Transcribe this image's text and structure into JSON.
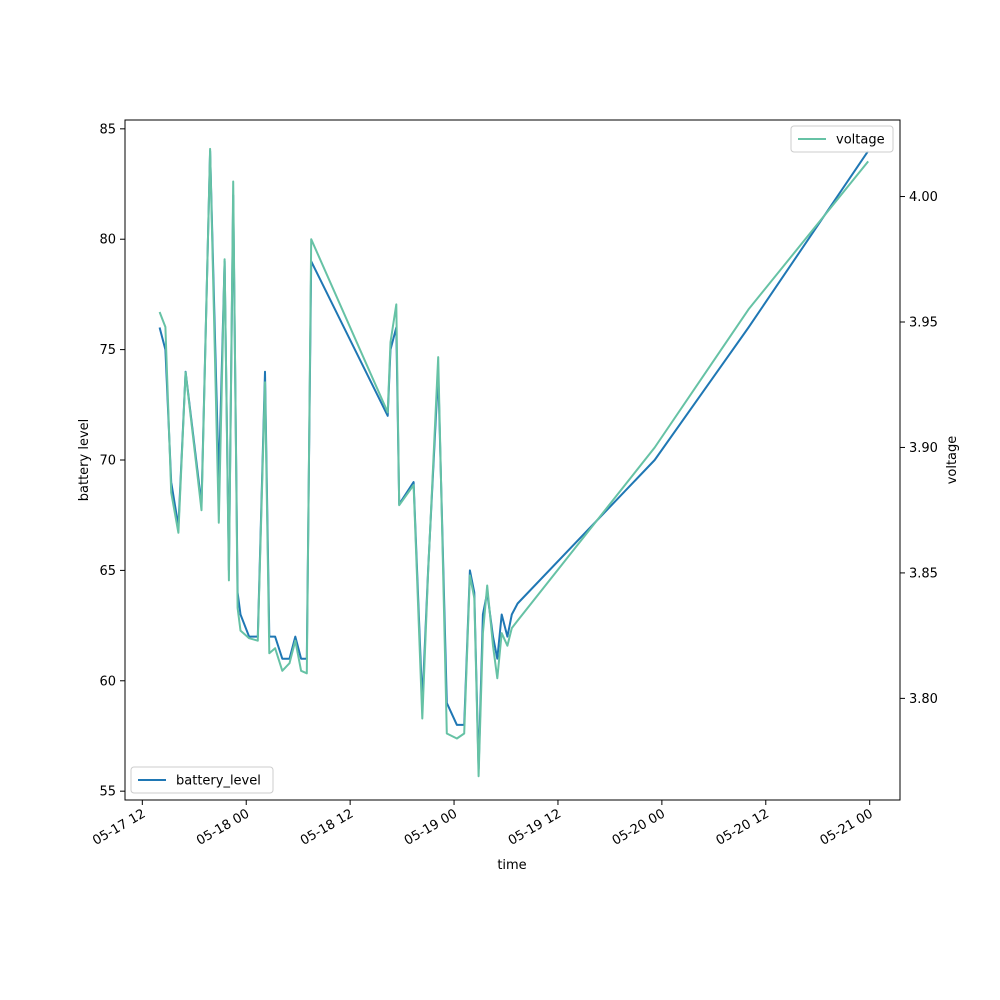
{
  "chart_data": {
    "type": "line",
    "xlabel": "time",
    "ylabel_left": "battery level",
    "ylabel_right": "voltage",
    "x_ticks": [
      "05-17 12",
      "05-18 00",
      "05-18 12",
      "05-19 00",
      "05-19 12",
      "05-20 00",
      "05-20 12",
      "05-21 00"
    ],
    "x_range": [
      "2024-05-17 10:00",
      "2024-05-21 03:30"
    ],
    "y_left": {
      "range": [
        54.6,
        85.4
      ],
      "ticks": [
        55,
        60,
        65,
        70,
        75,
        80,
        85
      ]
    },
    "y_right": {
      "range": [
        3.7595,
        4.0305
      ],
      "ticks": [
        3.8,
        3.85,
        3.9,
        3.95,
        4.0
      ],
      "tick_labels": [
        "3.80",
        "3.85",
        "3.90",
        "3.95",
        "4.00"
      ]
    },
    "series": [
      {
        "name": "battery_level",
        "axis": "left",
        "color": "#1f77b4",
        "legend_position": "lower-left",
        "x": [
          "2024-05-17 14:00",
          "2024-05-17 14:40",
          "2024-05-17 15:20",
          "2024-05-17 16:10",
          "2024-05-17 17:00",
          "2024-05-17 18:50",
          "2024-05-17 19:50",
          "2024-05-17 20:50",
          "2024-05-17 21:30",
          "2024-05-17 22:00",
          "2024-05-17 22:30",
          "2024-05-17 23:00",
          "2024-05-17 23:20",
          "2024-05-18 00:20",
          "2024-05-18 01:20",
          "2024-05-18 02:10",
          "2024-05-18 02:40",
          "2024-05-18 03:20",
          "2024-05-18 04:10",
          "2024-05-18 05:00",
          "2024-05-18 05:40",
          "2024-05-18 06:20",
          "2024-05-18 07:00",
          "2024-05-18 07:30",
          "2024-05-18 16:20",
          "2024-05-18 16:40",
          "2024-05-18 17:20",
          "2024-05-18 17:40",
          "2024-05-18 19:20",
          "2024-05-18 20:20",
          "2024-05-18 21:00",
          "2024-05-18 22:10",
          "2024-05-18 23:10",
          "2024-05-19 00:20",
          "2024-05-19 01:10",
          "2024-05-19 01:50",
          "2024-05-19 02:20",
          "2024-05-19 02:50",
          "2024-05-19 03:20",
          "2024-05-19 03:50",
          "2024-05-19 04:30",
          "2024-05-19 05:00",
          "2024-05-19 05:30",
          "2024-05-19 06:10",
          "2024-05-19 06:40",
          "2024-05-19 07:20",
          "2024-05-19 23:10",
          "2024-05-20 10:00",
          "2024-05-20 23:50"
        ],
        "values": [
          76.0,
          75.0,
          69.0,
          67.0,
          74.0,
          68.0,
          84.0,
          69.0,
          79.0,
          65.0,
          82.0,
          64.0,
          63.0,
          62.0,
          62.0,
          74.0,
          62.0,
          62.0,
          61.0,
          61.0,
          62.0,
          61.0,
          61.0,
          79.0,
          72.0,
          75.0,
          76.0,
          68.0,
          69.0,
          59.0,
          65.0,
          74.0,
          59.0,
          58.0,
          58.0,
          65.0,
          64.0,
          56.0,
          63.0,
          64.0,
          62.0,
          61.0,
          63.0,
          62.0,
          63.0,
          63.5,
          70.0,
          76.0,
          84.0
        ]
      },
      {
        "name": "voltage",
        "axis": "right",
        "color": "#66c2a5",
        "legend_position": "upper-right",
        "x": [
          "2024-05-17 14:00",
          "2024-05-17 14:40",
          "2024-05-17 15:20",
          "2024-05-17 16:10",
          "2024-05-17 17:00",
          "2024-05-17 18:50",
          "2024-05-17 19:50",
          "2024-05-17 20:50",
          "2024-05-17 21:30",
          "2024-05-17 22:00",
          "2024-05-17 22:30",
          "2024-05-17 23:00",
          "2024-05-17 23:20",
          "2024-05-18 00:20",
          "2024-05-18 01:20",
          "2024-05-18 02:10",
          "2024-05-18 02:40",
          "2024-05-18 03:20",
          "2024-05-18 04:10",
          "2024-05-18 05:00",
          "2024-05-18 05:40",
          "2024-05-18 06:20",
          "2024-05-18 07:00",
          "2024-05-18 07:30",
          "2024-05-18 16:20",
          "2024-05-18 16:40",
          "2024-05-18 17:20",
          "2024-05-18 17:40",
          "2024-05-18 19:20",
          "2024-05-18 20:20",
          "2024-05-18 21:00",
          "2024-05-18 22:10",
          "2024-05-18 23:10",
          "2024-05-19 00:20",
          "2024-05-19 01:10",
          "2024-05-19 01:50",
          "2024-05-19 02:20",
          "2024-05-19 02:50",
          "2024-05-19 03:20",
          "2024-05-19 03:50",
          "2024-05-19 04:30",
          "2024-05-19 05:00",
          "2024-05-19 05:30",
          "2024-05-19 06:10",
          "2024-05-19 06:40",
          "2024-05-19 07:20",
          "2024-05-19 23:10",
          "2024-05-20 10:00",
          "2024-05-20 23:50"
        ],
        "values": [
          3.954,
          3.948,
          3.882,
          3.866,
          3.93,
          3.875,
          4.019,
          3.87,
          3.975,
          3.847,
          4.006,
          3.836,
          3.827,
          3.824,
          3.823,
          3.926,
          3.818,
          3.82,
          3.811,
          3.814,
          3.823,
          3.811,
          3.81,
          3.983,
          3.914,
          3.942,
          3.957,
          3.877,
          3.885,
          3.792,
          3.85,
          3.936,
          3.786,
          3.784,
          3.786,
          3.849,
          3.84,
          3.769,
          3.826,
          3.845,
          3.821,
          3.808,
          3.826,
          3.821,
          3.828,
          3.831,
          3.9,
          3.955,
          4.014
        ]
      }
    ]
  }
}
